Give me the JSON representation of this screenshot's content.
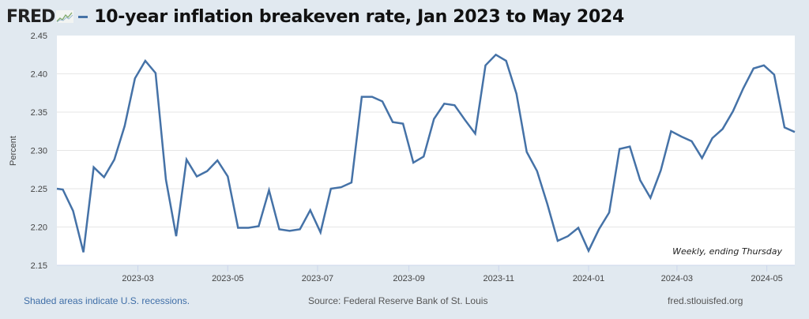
{
  "header": {
    "logo": "FRED",
    "logo_icon": "sparkline-chart-icon",
    "title": "10-year inflation breakeven rate, Jan 2023 to May 2024"
  },
  "footer": {
    "recession_note": "Shaded areas indicate U.S. recessions.",
    "source": "Source: Federal Reserve Bank of St. Louis",
    "site": "fred.stlouisfed.org"
  },
  "colors": {
    "background": "#e1e9f0",
    "plot_background": "#ffffff",
    "series": "#4572a7",
    "grid": "#e6e6e6"
  },
  "chart_data": {
    "type": "line",
    "title": "10-year inflation breakeven rate, Jan 2023 to May 2024",
    "xlabel": "",
    "ylabel": "Percent",
    "annotation": "Weekly, ending Thursday",
    "ylim": [
      2.15,
      2.45
    ],
    "xlim": [
      "2023-01-05",
      "2024-05-16"
    ],
    "grid": true,
    "yticks": [
      "2.15",
      "2.20",
      "2.25",
      "2.30",
      "2.35",
      "2.40",
      "2.45"
    ],
    "xticks": [
      "2023-03",
      "2023-05",
      "2023-07",
      "2023-09",
      "2023-11",
      "2024-01",
      "2024-03",
      "2024-05"
    ],
    "legend": "top-left",
    "series": [
      {
        "name": "10-year inflation breakeven rate",
        "x": [
          "2023-01-05",
          "2023-01-09",
          "2023-01-16",
          "2023-01-23",
          "2023-01-30",
          "2023-02-06",
          "2023-02-13",
          "2023-02-20",
          "2023-02-27",
          "2023-03-06",
          "2023-03-13",
          "2023-03-20",
          "2023-03-27",
          "2023-04-03",
          "2023-04-10",
          "2023-04-17",
          "2023-04-24",
          "2023-05-01",
          "2023-05-08",
          "2023-05-15",
          "2023-05-22",
          "2023-05-29",
          "2023-06-05",
          "2023-06-12",
          "2023-06-19",
          "2023-06-26",
          "2023-07-03",
          "2023-07-10",
          "2023-07-17",
          "2023-07-24",
          "2023-07-31",
          "2023-08-07",
          "2023-08-14",
          "2023-08-21",
          "2023-08-28",
          "2023-09-04",
          "2023-09-11",
          "2023-09-18",
          "2023-09-25",
          "2023-10-02",
          "2023-10-09",
          "2023-10-16",
          "2023-10-23",
          "2023-10-30",
          "2023-11-06",
          "2023-11-13",
          "2023-11-20",
          "2023-11-27",
          "2023-12-04",
          "2023-12-11",
          "2023-12-18",
          "2023-12-25",
          "2024-01-01",
          "2024-01-08",
          "2024-01-15",
          "2024-01-22",
          "2024-01-29",
          "2024-02-05",
          "2024-02-12",
          "2024-02-19",
          "2024-02-26",
          "2024-03-04",
          "2024-03-11",
          "2024-03-18",
          "2024-03-25",
          "2024-04-01",
          "2024-04-08",
          "2024-04-15",
          "2024-04-22",
          "2024-04-29",
          "2024-05-06",
          "2024-05-13",
          "2024-05-20"
        ],
        "values": [
          2.25,
          2.249,
          2.221,
          2.167,
          2.278,
          2.265,
          2.288,
          2.332,
          2.394,
          2.417,
          2.401,
          2.262,
          2.188,
          2.288,
          2.266,
          2.273,
          2.287,
          2.266,
          2.199,
          2.199,
          2.201,
          2.248,
          2.197,
          2.195,
          2.197,
          2.222,
          2.193,
          2.25,
          2.252,
          2.258,
          2.37,
          2.37,
          2.364,
          2.337,
          2.335,
          2.284,
          2.292,
          2.341,
          2.361,
          2.359,
          2.34,
          2.322,
          2.411,
          2.425,
          2.417,
          2.374,
          2.298,
          2.273,
          2.23,
          2.182,
          2.188,
          2.199,
          2.169,
          2.197,
          2.219,
          2.302,
          2.305,
          2.261,
          2.238,
          2.274,
          2.325,
          2.318,
          2.312,
          2.29,
          2.316,
          2.328,
          2.351,
          2.381,
          2.407,
          2.411,
          2.399,
          2.33,
          2.324
        ]
      }
    ]
  }
}
